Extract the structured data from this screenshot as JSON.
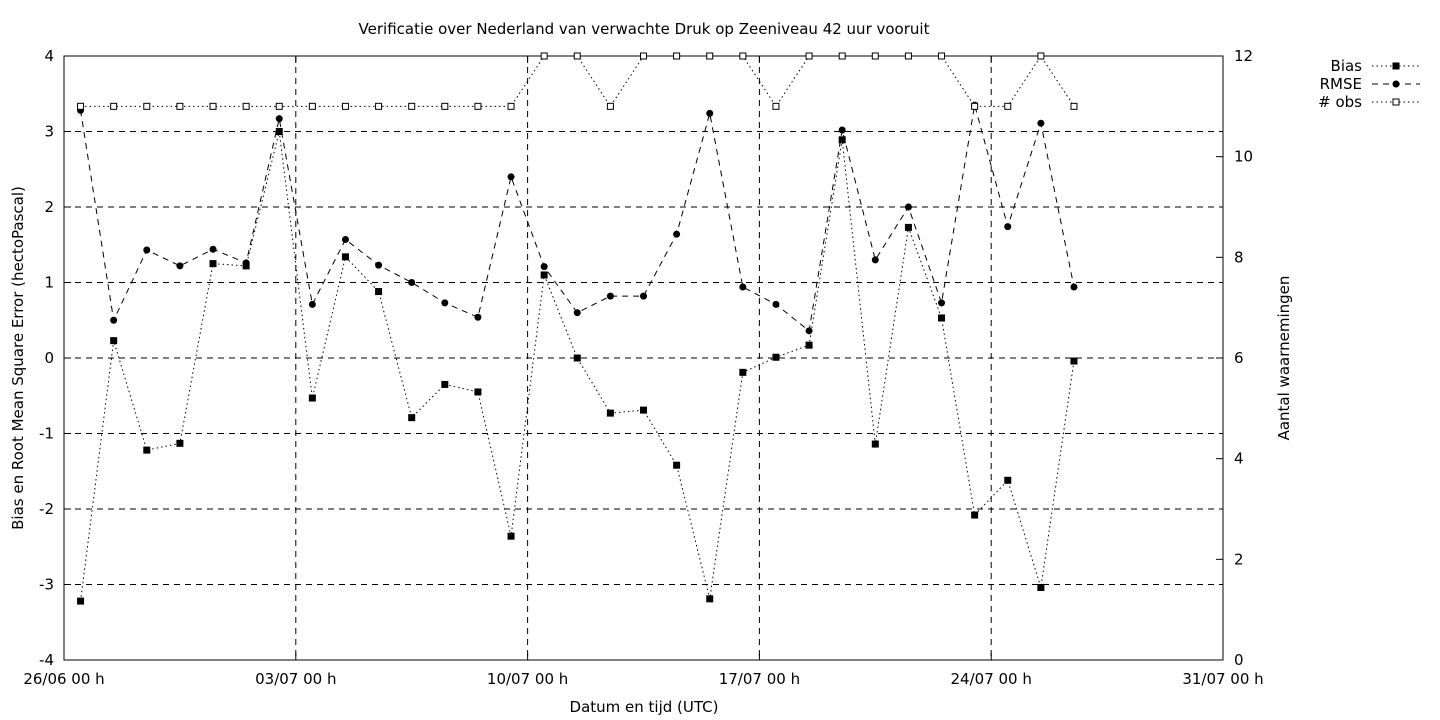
{
  "chart_data": {
    "type": "line",
    "title": "Verificatie over Nederland van verwachte Druk op Zeeniveau 42 uur vooruit",
    "xlabel": "Datum en tijd (UTC)",
    "ylabel": "Bias en Root Mean Square Error (hectoPascal)",
    "y2label": "Aantal waarnemingen",
    "xlim": [
      0,
      35
    ],
    "ylim": [
      -4,
      4
    ],
    "y2lim": [
      0,
      12
    ],
    "x_unit": "days since 26/06 00 h",
    "x_tick_labels": [
      "26/06 00 h",
      "03/07 00 h",
      "10/07 00 h",
      "17/07 00 h",
      "24/07 00 h",
      "31/07 00 h"
    ],
    "x_tick_values": [
      0,
      7,
      14,
      21,
      28,
      35
    ],
    "y_tick_labels": [
      "4",
      "3",
      "2",
      "1",
      "0",
      "-1",
      "-2",
      "-3",
      "-4"
    ],
    "y_tick_values": [
      4,
      3,
      2,
      1,
      0,
      -1,
      -2,
      -3,
      -4
    ],
    "y2_tick_labels": [
      "12",
      "10",
      "8",
      "6",
      "4",
      "2",
      "0"
    ],
    "y2_tick_values": [
      12,
      10,
      8,
      6,
      4,
      2,
      0
    ],
    "grid": true,
    "legend_position": "top-right outside",
    "x": [
      0.5,
      1.5,
      2.5,
      3.5,
      4.5,
      5.5,
      6.5,
      7.5,
      8.5,
      9.5,
      10.5,
      11.5,
      12.5,
      13.5,
      14.5,
      15.5,
      16.5,
      17.5,
      18.5,
      19.5,
      20.5,
      21.5,
      22.5,
      23.5,
      24.5,
      25.5,
      26.5,
      27.5,
      28.5,
      29.5,
      30.5
    ],
    "series": [
      {
        "name": "Bias",
        "axis": "y",
        "marker": "filled-square",
        "line": "dotted",
        "values": [
          -3.22,
          0.23,
          -1.22,
          -1.13,
          1.25,
          1.22,
          3.0,
          -0.53,
          1.34,
          0.88,
          -0.79,
          -0.35,
          -0.45,
          -2.36,
          1.1,
          0.0,
          -0.73,
          -0.69,
          -1.42,
          -3.19,
          -0.19,
          0.01,
          0.17,
          2.89,
          -1.14,
          1.73,
          0.53,
          -2.08,
          -1.62,
          -3.04,
          -0.04
        ]
      },
      {
        "name": "RMSE",
        "axis": "y",
        "marker": "filled-circle",
        "line": "dashed",
        "values": [
          3.28,
          0.5,
          1.43,
          1.22,
          1.44,
          1.26,
          3.17,
          0.71,
          1.57,
          1.23,
          1.0,
          0.73,
          0.54,
          2.4,
          1.21,
          0.6,
          0.82,
          0.82,
          1.64,
          3.24,
          0.94,
          0.71,
          0.36,
          3.02,
          1.3,
          2.0,
          0.73,
          3.35,
          1.74,
          3.11,
          0.94
        ]
      },
      {
        "name": "# obs",
        "axis": "y2",
        "marker": "open-square",
        "line": "dotted",
        "values": [
          11,
          11,
          11,
          11,
          11,
          11,
          11,
          11,
          11,
          11,
          11,
          11,
          11,
          11,
          12,
          12,
          11,
          12,
          12,
          12,
          12,
          11,
          12,
          12,
          12,
          12,
          12,
          11,
          11,
          12,
          11
        ]
      }
    ]
  }
}
